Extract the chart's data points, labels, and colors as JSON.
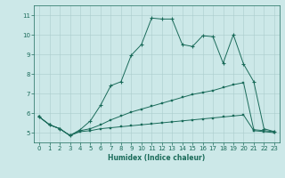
{
  "xlabel": "Humidex (Indice chaleur)",
  "xlim": [
    -0.5,
    23.5
  ],
  "ylim": [
    4.5,
    11.5
  ],
  "xticks": [
    0,
    1,
    2,
    3,
    4,
    5,
    6,
    7,
    8,
    9,
    10,
    11,
    12,
    13,
    14,
    15,
    16,
    17,
    18,
    19,
    20,
    21,
    22,
    23
  ],
  "yticks": [
    5,
    6,
    7,
    8,
    9,
    10,
    11
  ],
  "bg_color": "#cce8e8",
  "grid_color": "#aacccc",
  "line_color": "#1a6b5a",
  "line1_x": [
    0,
    1,
    2,
    3,
    4,
    5,
    6,
    7,
    8,
    9,
    10,
    11,
    12,
    13,
    14,
    15,
    16,
    17,
    18,
    19,
    20,
    21,
    22,
    23
  ],
  "line1_y": [
    5.8,
    5.4,
    5.2,
    4.85,
    5.05,
    5.1,
    5.2,
    5.25,
    5.3,
    5.35,
    5.4,
    5.45,
    5.5,
    5.55,
    5.6,
    5.65,
    5.7,
    5.75,
    5.8,
    5.85,
    5.9,
    5.1,
    5.05,
    5.0
  ],
  "line2_x": [
    0,
    1,
    2,
    3,
    4,
    5,
    6,
    7,
    8,
    9,
    10,
    11,
    12,
    13,
    14,
    15,
    16,
    17,
    18,
    19,
    20,
    21,
    22,
    23
  ],
  "line2_y": [
    5.8,
    5.4,
    5.2,
    4.85,
    5.1,
    5.2,
    5.4,
    5.65,
    5.85,
    6.05,
    6.2,
    6.35,
    6.5,
    6.65,
    6.8,
    6.95,
    7.05,
    7.15,
    7.3,
    7.45,
    7.55,
    5.15,
    5.1,
    5.05
  ],
  "line3_x": [
    0,
    1,
    2,
    3,
    4,
    5,
    6,
    7,
    8,
    9,
    10,
    11,
    12,
    13,
    14,
    15,
    16,
    17,
    18,
    19,
    20,
    21,
    22,
    23
  ],
  "line3_y": [
    5.8,
    5.4,
    5.2,
    4.85,
    5.15,
    5.6,
    6.4,
    7.4,
    7.6,
    8.95,
    9.5,
    10.85,
    10.8,
    10.8,
    9.5,
    9.4,
    9.95,
    9.9,
    8.55,
    10.0,
    8.5,
    7.6,
    5.2,
    5.05
  ]
}
